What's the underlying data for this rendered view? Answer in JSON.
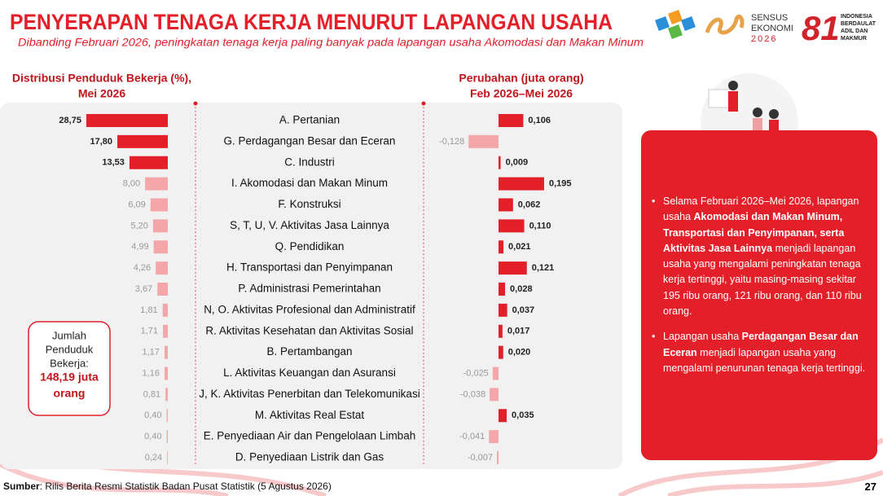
{
  "header": {
    "title": "PENYERAPAN TENAGA KERJA MENURUT LAPANGAN USAHA",
    "subtitle": "Dibanding Februari 2026, peningkatan tenaga kerja paling banyak pada lapangan usaha Akomodasi dan Makan Minum"
  },
  "logos": {
    "sensus": [
      "SENSUS",
      "EKONOMI",
      "2026"
    ],
    "anniversary": {
      "number": "81",
      "lines": [
        "INDONESIA",
        "BERDAULAT",
        "ADIL DAN",
        "MAKMUR"
      ]
    }
  },
  "chart_data": [
    {
      "type": "bar",
      "title": [
        "Distribusi Penduduk Bekerja (%),",
        "Mei 2026"
      ],
      "categories": [
        "A. Pertanian",
        "G. Perdagangan Besar dan Eceran",
        "C. Industri",
        "I. Akomodasi dan Makan Minum",
        "F. Konstruksi",
        "S, T, U, V. Aktivitas Jasa Lainnya",
        "Q. Pendidikan",
        "H. Transportasi dan Penyimpanan",
        "P. Administrasi Pemerintahan",
        "N, O. Aktivitas Profesional dan Administratif",
        "R. Aktivitas Kesehatan dan Aktivitas Sosial",
        "B. Pertambangan",
        "L. Aktivitas Keuangan dan Asuransi",
        "J, K. Aktivitas Penerbitan dan Telekomunikasi",
        "M. Aktivitas Real Estat",
        "E. Penyediaan Air dan Pengelolaan Limbah",
        "D. Penyediaan Listrik dan Gas"
      ],
      "values": [
        28.75,
        17.8,
        13.53,
        8,
        6.09,
        5.2,
        4.99,
        4.26,
        3.67,
        1.81,
        1.71,
        1.17,
        1.16,
        0.81,
        0.4,
        0.4,
        0.24
      ],
      "value_labels": [
        "28,75",
        "17,80",
        "13,53",
        "8,00",
        "6,09",
        "5,20",
        "4,99",
        "4,26",
        "3,67",
        "1,81",
        "1,71",
        "1,17",
        "1,16",
        "0,81",
        "0,40",
        "0,40",
        "0,24"
      ],
      "colors": [
        "#e3202a",
        "#e3202a",
        "#e3202a",
        "#f4a6a8",
        "#f4a6a8",
        "#f4a6a8",
        "#f4a6a8",
        "#f4a6a8",
        "#f4a6a8",
        "#f4a6a8",
        "#f4a6a8",
        "#f4a6a8",
        "#f4a6a8",
        "#f4a6a8",
        "#f4a6a8",
        "#f4a6a8",
        "#f4a6a8"
      ]
    },
    {
      "type": "bar",
      "title": [
        "Perubahan (juta orang)",
        "Feb 2026–Mei 2026"
      ],
      "values": [
        0.106,
        -0.128,
        0.009,
        0.195,
        0.062,
        0.11,
        0.021,
        0.121,
        0.028,
        0.037,
        0.017,
        0.02,
        -0.025,
        -0.038,
        0.035,
        -0.041,
        -0.007
      ],
      "value_labels": [
        "0,106",
        "-0,128",
        "0,009",
        "0,195",
        "0,062",
        "0,110",
        "0,021",
        "0,121",
        "0,028",
        "0,037",
        "0,017",
        "0,020",
        "-0,025",
        "-0,038",
        "0,035",
        "-0,041",
        "-0,007"
      ],
      "colors": [
        "#e3202a",
        "#f4a6a8",
        "#e3202a",
        "#e3202a",
        "#e3202a",
        "#e3202a",
        "#e3202a",
        "#e3202a",
        "#e3202a",
        "#e3202a",
        "#e3202a",
        "#e3202a",
        "#f4a6a8",
        "#f4a6a8",
        "#e3202a",
        "#f4a6a8",
        "#f4a6a8"
      ]
    }
  ],
  "total_box": {
    "lines": [
      "Jumlah",
      "Penduduk",
      "Bekerja:"
    ],
    "value_lines": [
      "148,19 juta",
      "orang"
    ]
  },
  "summary": {
    "bullets": [
      [
        {
          "text": "Selama Februari 2026–Mei 2026, lapangan usaha ",
          "bold": false
        },
        {
          "text": "Akomodasi dan Makan Minum, Transportasi dan Penyimpanan, serta Aktivitas Jasa Lainnya",
          "bold": true
        },
        {
          "text": " menjadi lapangan usaha yang mengalami peningkatan tenaga kerja tertinggi, yaitu masing-masing sekitar 195 ribu orang, 121 ribu orang, dan 110 ribu orang.",
          "bold": false
        }
      ],
      [
        {
          "text": "Lapangan usaha ",
          "bold": false
        },
        {
          "text": "Perdagangan Besar dan Eceran",
          "bold": true
        },
        {
          "text": " menjadi lapangan usaha yang mengalami penurunan tenaga kerja tertinggi.",
          "bold": false
        }
      ]
    ]
  },
  "footer": {
    "source_label": "Sumber",
    "source": ": Rilis Berita Resmi Statistik Badan Pusat Statistik (5 Agustus 2026)",
    "page": "27"
  }
}
